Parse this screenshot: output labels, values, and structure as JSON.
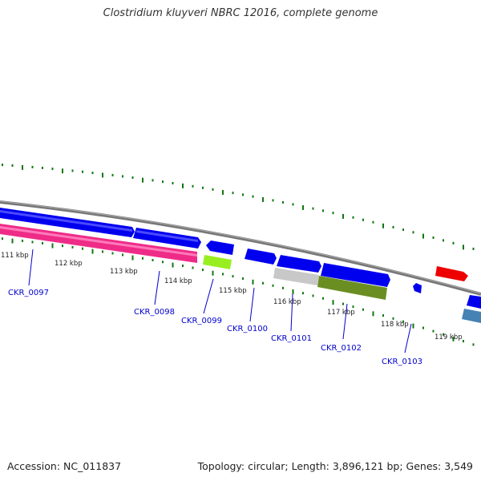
{
  "title": "Clostridium kluyveri NBRC 12016, complete genome",
  "footer": {
    "accession": "Accession: NC_011837",
    "summary": "Topology: circular; Length: 3,896,121 bp; Genes: 3,549"
  },
  "scale": {
    "ticks": [
      "111 kbp",
      "112 kbp",
      "113 kbp",
      "114 kbp",
      "115 kbp",
      "116 kbp",
      "117 kbp",
      "118 kbp",
      "119 kbp"
    ]
  },
  "genes": [
    {
      "label": "CKR_0097",
      "color": "#ee2c88"
    },
    {
      "label": "CKR_0098",
      "color": "#0000ee"
    },
    {
      "label": "CKR_0099",
      "color": "#99ee22"
    },
    {
      "label": "CKR_0100",
      "color": "#0000ee"
    },
    {
      "label": "CKR_0101",
      "color": "#c8c8c8"
    },
    {
      "label": "CKR_0102",
      "color": "#6b8e23"
    },
    {
      "label": "CKR_0103",
      "color": "#0000ee"
    }
  ],
  "colors": {
    "forward_cds": "#0000ee",
    "red_feature": "#ee0000",
    "steelblue_feature": "#4682b4",
    "backbone": "#777777",
    "gc_dots": "#117711",
    "label": "#0000cc"
  }
}
